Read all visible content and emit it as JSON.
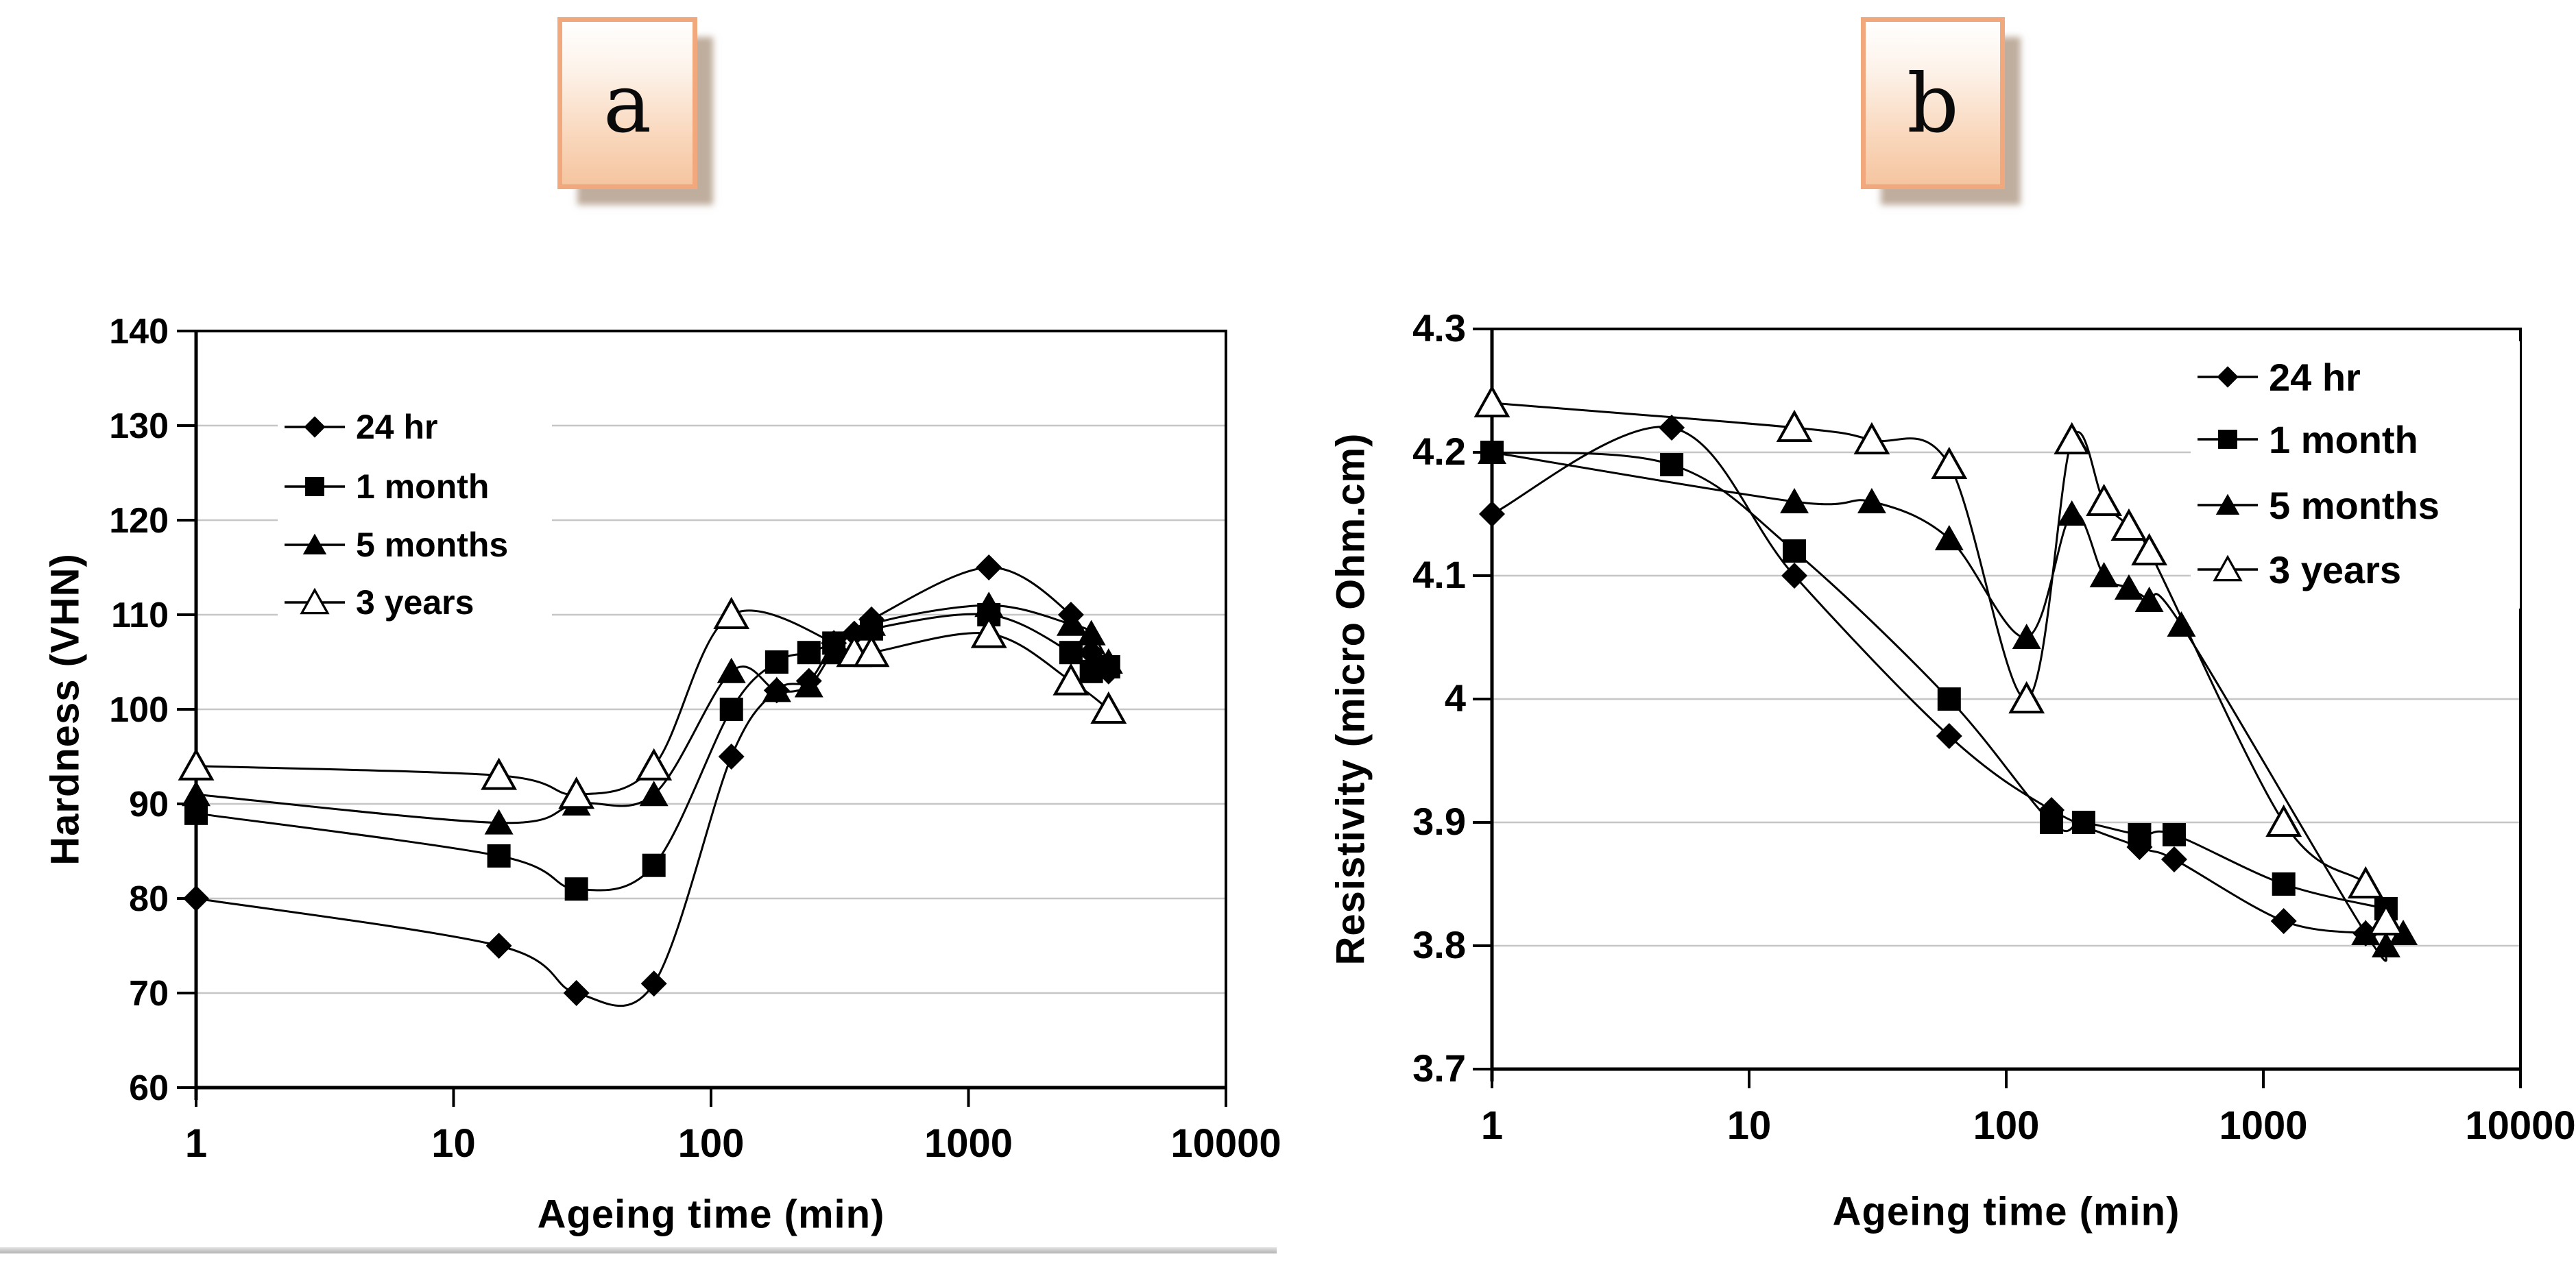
{
  "panels": [
    {
      "label": "a"
    },
    {
      "label": "b"
    }
  ],
  "chart_data": [
    {
      "type": "line",
      "xscale": "log",
      "title": "",
      "xlabel": "Ageing time (min)",
      "ylabel": "Hardness (VHN)",
      "xlim": [
        1,
        10000
      ],
      "ylim": [
        60,
        140
      ],
      "xticks": [
        "1",
        "10",
        "100",
        "1000",
        "10000"
      ],
      "yticks": [
        "60",
        "70",
        "80",
        "90",
        "100",
        "110",
        "120",
        "130",
        "140"
      ],
      "grid": "horizontal-major",
      "legend_position": "top-left",
      "series": [
        {
          "name": "24 hr",
          "marker": "diamond",
          "points": [
            [
              1,
              80
            ],
            [
              15,
              75
            ],
            [
              30,
              70
            ],
            [
              60,
              71
            ],
            [
              120,
              95
            ],
            [
              180,
              102
            ],
            [
              240,
              103
            ],
            [
              300,
              107
            ],
            [
              360,
              108
            ],
            [
              420,
              109.5
            ],
            [
              1200,
              115
            ],
            [
              2500,
              110
            ],
            [
              3000,
              106
            ],
            [
              3500,
              104
            ]
          ]
        },
        {
          "name": "1 month",
          "marker": "square",
          "points": [
            [
              1,
              89
            ],
            [
              15,
              84.5
            ],
            [
              30,
              81
            ],
            [
              60,
              83.5
            ],
            [
              120,
              100
            ],
            [
              180,
              105
            ],
            [
              240,
              106
            ],
            [
              300,
              107
            ],
            [
              420,
              108.5
            ],
            [
              1200,
              110
            ],
            [
              2500,
              106
            ],
            [
              3000,
              104
            ],
            [
              3500,
              104.5
            ]
          ]
        },
        {
          "name": "5 months",
          "marker": "triangle",
          "points": [
            [
              1,
              91
            ],
            [
              15,
              88
            ],
            [
              30,
              90
            ],
            [
              60,
              91
            ],
            [
              120,
              104
            ],
            [
              180,
              102
            ],
            [
              240,
              102.5
            ],
            [
              300,
              106
            ],
            [
              420,
              109
            ],
            [
              1200,
              111
            ],
            [
              2500,
              109
            ],
            [
              3000,
              108
            ],
            [
              3500,
              105
            ]
          ]
        },
        {
          "name": "3 years",
          "marker": "triangle-open",
          "points": [
            [
              1,
              94
            ],
            [
              15,
              93
            ],
            [
              30,
              91
            ],
            [
              60,
              94
            ],
            [
              120,
              110
            ],
            [
              360,
              106
            ],
            [
              420,
              106
            ],
            [
              1200,
              108
            ],
            [
              2500,
              103
            ],
            [
              3500,
              100
            ]
          ]
        }
      ]
    },
    {
      "type": "line",
      "xscale": "log",
      "title": "",
      "xlabel": "Ageing time (min)",
      "ylabel": "Resistivity (micro Ohm.cm)",
      "xlim": [
        1,
        10000
      ],
      "ylim": [
        3.7,
        4.3
      ],
      "xticks": [
        "1",
        "10",
        "100",
        "1000",
        "10000"
      ],
      "yticks": [
        "3.7",
        "3.8",
        "3.9",
        "4",
        "4.1",
        "4.2",
        "4.3"
      ],
      "grid": "horizontal-major",
      "legend_position": "top-right",
      "series": [
        {
          "name": "24 hr",
          "marker": "diamond",
          "points": [
            [
              1,
              4.15
            ],
            [
              5,
              4.22
            ],
            [
              15,
              4.1
            ],
            [
              60,
              3.97
            ],
            [
              150,
              3.91
            ],
            [
              330,
              3.88
            ],
            [
              450,
              3.87
            ],
            [
              1200,
              3.82
            ],
            [
              2500,
              3.81
            ]
          ]
        },
        {
          "name": "1 month",
          "marker": "square",
          "points": [
            [
              1,
              4.2
            ],
            [
              5,
              4.19
            ],
            [
              15,
              4.12
            ],
            [
              60,
              4.0
            ],
            [
              150,
              3.9
            ],
            [
              200,
              3.9
            ],
            [
              330,
              3.89
            ],
            [
              450,
              3.89
            ],
            [
              1200,
              3.85
            ],
            [
              3000,
              3.83
            ]
          ]
        },
        {
          "name": "5 months",
          "marker": "triangle",
          "points": [
            [
              1,
              4.2
            ],
            [
              15,
              4.16
            ],
            [
              30,
              4.16
            ],
            [
              60,
              4.13
            ],
            [
              120,
              4.05
            ],
            [
              180,
              4.15
            ],
            [
              240,
              4.1
            ],
            [
              300,
              4.09
            ],
            [
              360,
              4.08
            ],
            [
              480,
              4.06
            ],
            [
              2500,
              3.81
            ],
            [
              3000,
              3.8
            ],
            [
              3500,
              3.81
            ]
          ]
        },
        {
          "name": "3 years",
          "marker": "triangle-open",
          "points": [
            [
              1,
              4.24
            ],
            [
              15,
              4.22
            ],
            [
              30,
              4.21
            ],
            [
              60,
              4.19
            ],
            [
              120,
              4.0
            ],
            [
              180,
              4.21
            ],
            [
              240,
              4.16
            ],
            [
              300,
              4.14
            ],
            [
              360,
              4.12
            ],
            [
              1200,
              3.9
            ],
            [
              2500,
              3.85
            ],
            [
              3000,
              3.82
            ]
          ]
        }
      ]
    }
  ],
  "colors": {
    "line": "#000000",
    "grid": "#c6c6c6",
    "frame": "#000000",
    "tag_border": "#f1a87c",
    "tag_fill_bottom": "#f5c5a0"
  }
}
